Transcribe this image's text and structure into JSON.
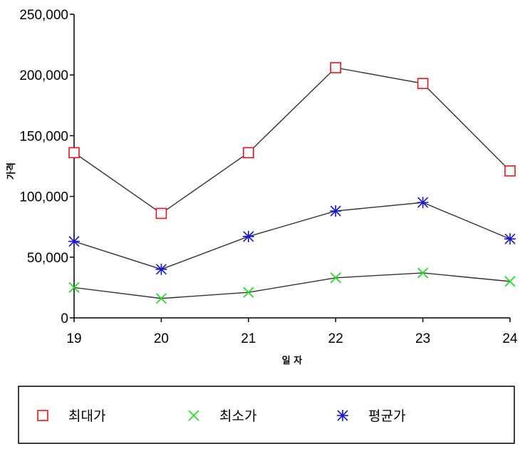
{
  "chart_data": {
    "type": "line",
    "categories": [
      "19",
      "20",
      "21",
      "22",
      "23",
      "24"
    ],
    "xlabel": "일 자",
    "ylabel": "가격",
    "ylim": [
      0,
      250000
    ],
    "yticks": [
      "0",
      "50,000",
      "100,000",
      "150,000",
      "200,000",
      "250,000"
    ],
    "legend_position": "bottom",
    "series": [
      {
        "name": "최대가",
        "marker": "square",
        "color": "#e8141b",
        "values": [
          136000,
          86000,
          136000,
          206000,
          193000,
          121000
        ]
      },
      {
        "name": "최소가",
        "marker": "x",
        "color": "#22dd22",
        "values": [
          25000,
          16000,
          21000,
          33000,
          37000,
          30000
        ]
      },
      {
        "name": "평균가",
        "marker": "asterisk",
        "color": "#1414dc",
        "values": [
          63000,
          40000,
          67000,
          88000,
          95000,
          65000
        ]
      }
    ],
    "line_color": "#333333",
    "grid": false
  }
}
